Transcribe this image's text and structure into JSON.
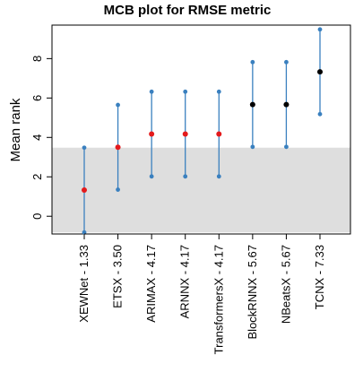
{
  "chart_data": {
    "type": "mcb",
    "title": "MCB plot for RMSE metric",
    "ylabel": "Mean rank",
    "xlabel": "",
    "ylim": [
      -0.9,
      9.7
    ],
    "yticks": [
      0,
      2,
      4,
      6,
      8
    ],
    "grid": false,
    "reference_band": {
      "lower": -0.82,
      "upper": 3.48,
      "color": "#dedede"
    },
    "categories": [
      "XEWNet - 1.33",
      "ETSX - 3.50",
      "ARIMAX - 4.17",
      "ARNNX - 4.17",
      "TransformersX - 4.17",
      "BlockRNNX - 5.67",
      "NBeatsX - 5.67",
      "TCNX - 7.33"
    ],
    "mean_rank": [
      1.33,
      3.5,
      4.17,
      4.17,
      4.17,
      5.67,
      5.67,
      7.33
    ],
    "lower": [
      -0.82,
      1.35,
      2.02,
      2.02,
      2.02,
      3.52,
      3.52,
      5.18
    ],
    "upper": [
      3.48,
      5.65,
      6.32,
      6.32,
      6.32,
      7.82,
      7.82,
      9.48
    ],
    "point_colors": [
      "#e41a1c",
      "#e41a1c",
      "#e41a1c",
      "#e41a1c",
      "#e41a1c",
      "#000000",
      "#000000",
      "#000000"
    ],
    "interval_color": "#3a80bf"
  }
}
